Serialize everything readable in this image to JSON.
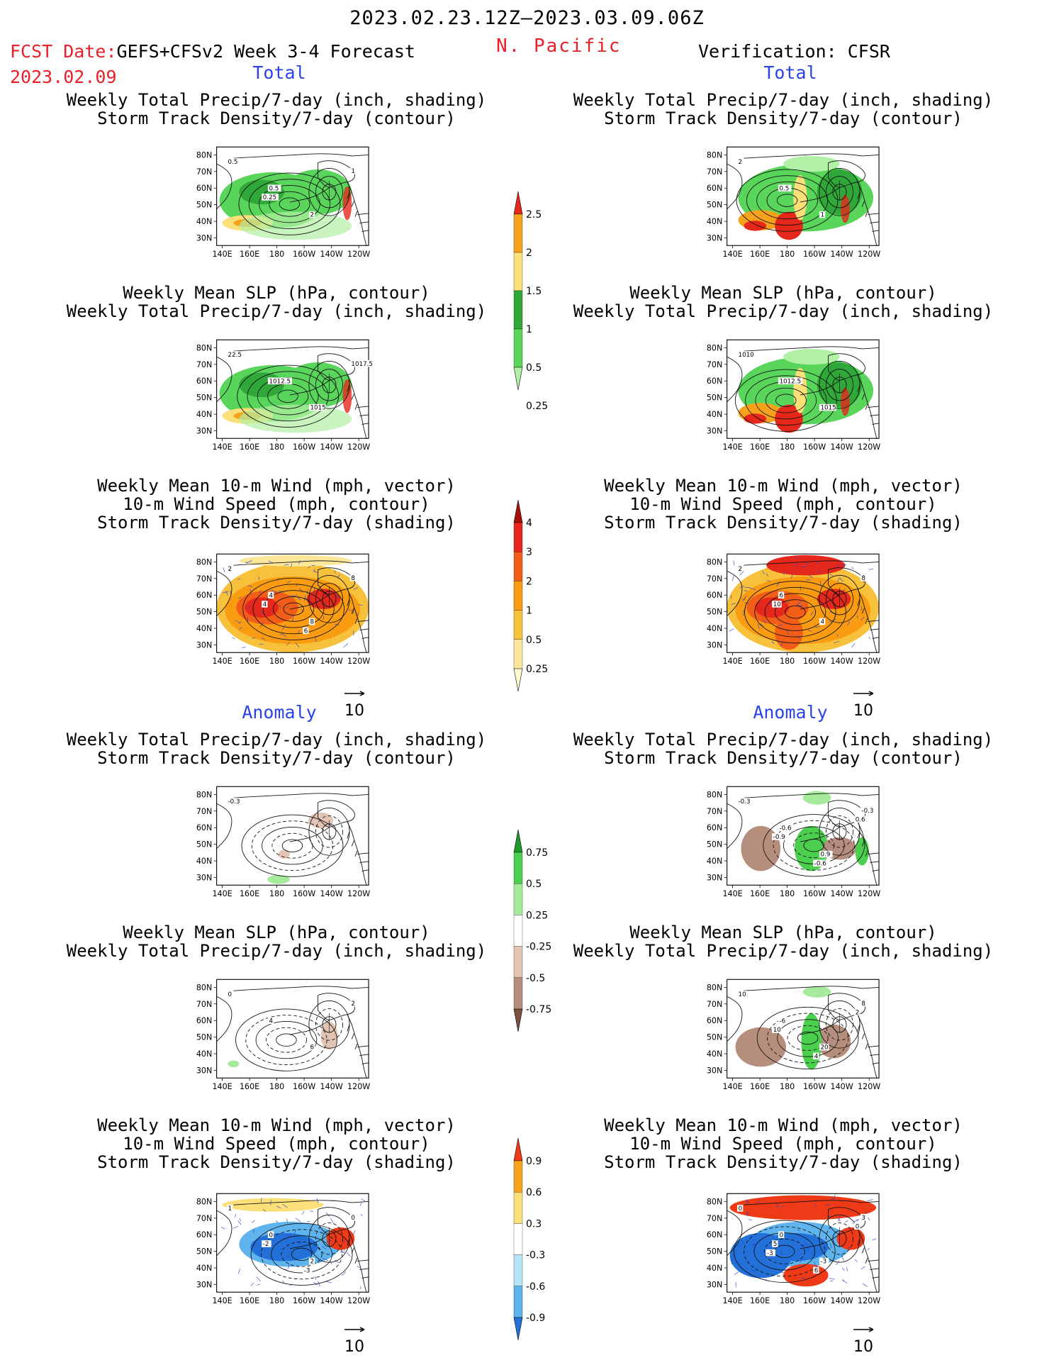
{
  "header": {
    "date_range": "2023.02.23.12Z–2023.03.09.06Z",
    "fcst_label": "FCST Date:",
    "fcst_product": "GEFS+CFSv2 Week 3-4 Forecast",
    "fcst_date": "2023.02.09",
    "region": "N. Pacific",
    "verification": "Verification: CFSR"
  },
  "sections": {
    "total": "Total",
    "anomaly": "Anomaly"
  },
  "panel_titles": {
    "precip_storm": "Weekly Total Precip/7-day (inch, shading)\nStorm Track Density/7-day (contour)",
    "slp_precip": "Weekly Mean SLP (hPa, contour)\nWeekly Total Precip/7-day (inch, shading)",
    "wind_storm": "Weekly Mean 10-m Wind (mph, vector)\n10-m Wind Speed (mph, contour)\nStorm Track Density/7-day (shading)"
  },
  "axes": {
    "lat_ticks": [
      "80N",
      "70N",
      "60N",
      "50N",
      "40N",
      "30N"
    ],
    "lon_ticks": [
      "140E",
      "160E",
      "180",
      "160W",
      "140W",
      "120W"
    ]
  },
  "wind_ref": "10",
  "contour_labels": {
    "fc_precip": [
      "0.5",
      "0.5",
      "2",
      "1",
      "0.25"
    ],
    "ob_precip": [
      "2",
      "0.5",
      "1"
    ],
    "fc_slp": [
      "22.5",
      "1012.5",
      "1015",
      "1017.5"
    ],
    "ob_slp": [
      "1010",
      "1012.5",
      "1015"
    ],
    "fc_wind": [
      "2",
      "4",
      "8",
      "8",
      "4",
      "6"
    ],
    "ob_wind": [
      "2",
      "6",
      "4",
      "8",
      "10"
    ],
    "fc_precip_anom": [
      "-0.3"
    ],
    "ob_precip_anom": [
      "-0.3",
      "-0.6",
      "0.9",
      "-0.3",
      "-0.9",
      "-0.6",
      "0.6"
    ],
    "fc_slp_anom": [
      "0",
      "4",
      "6",
      "2"
    ],
    "ob_slp_anom": [
      "10",
      "-6",
      "20",
      "8",
      "10",
      "4",
      "2"
    ],
    "fc_wind_anom": [
      "1",
      "0",
      "2",
      "0",
      "-2",
      "-3"
    ],
    "ob_wind_anom": [
      "0",
      "0",
      "-3",
      "3",
      "5",
      "6",
      "0",
      "-3"
    ]
  },
  "colorbars": {
    "precip_total": {
      "labels": [
        "2.5",
        "2",
        "1.5",
        "1",
        "0.5",
        "0.25"
      ],
      "colors": [
        "#e6271b",
        "#f7a21b",
        "#fbe07a",
        "#2fa839",
        "#58d55a",
        "#b2f0a5"
      ]
    },
    "storm_total": {
      "labels": [
        "4",
        "3",
        "2",
        "1",
        "0.5",
        "0.25"
      ],
      "colors": [
        "#a8100c",
        "#e6271b",
        "#f25e17",
        "#f99c12",
        "#f7c13b",
        "#fbe69a",
        "#fffcd0"
      ]
    },
    "precip_anom": {
      "labels": [
        "0.75",
        "0.5",
        "0.25",
        "-0.25",
        "-0.5",
        "-0.75"
      ],
      "colors": [
        "#1c9a2b",
        "#4ccf4f",
        "#a5eb9b",
        "#ffffff",
        "#e3c3b3",
        "#b58e7e",
        "#7b5040"
      ]
    },
    "storm_anom": {
      "labels": [
        "0.9",
        "0.6",
        "0.3",
        "-0.3",
        "-0.6",
        "-0.9"
      ],
      "colors": [
        "#ee3a16",
        "#f7a21b",
        "#fbe07a",
        "#ffffff",
        "#b4e5f7",
        "#5fb4ee",
        "#2270d8"
      ]
    }
  }
}
